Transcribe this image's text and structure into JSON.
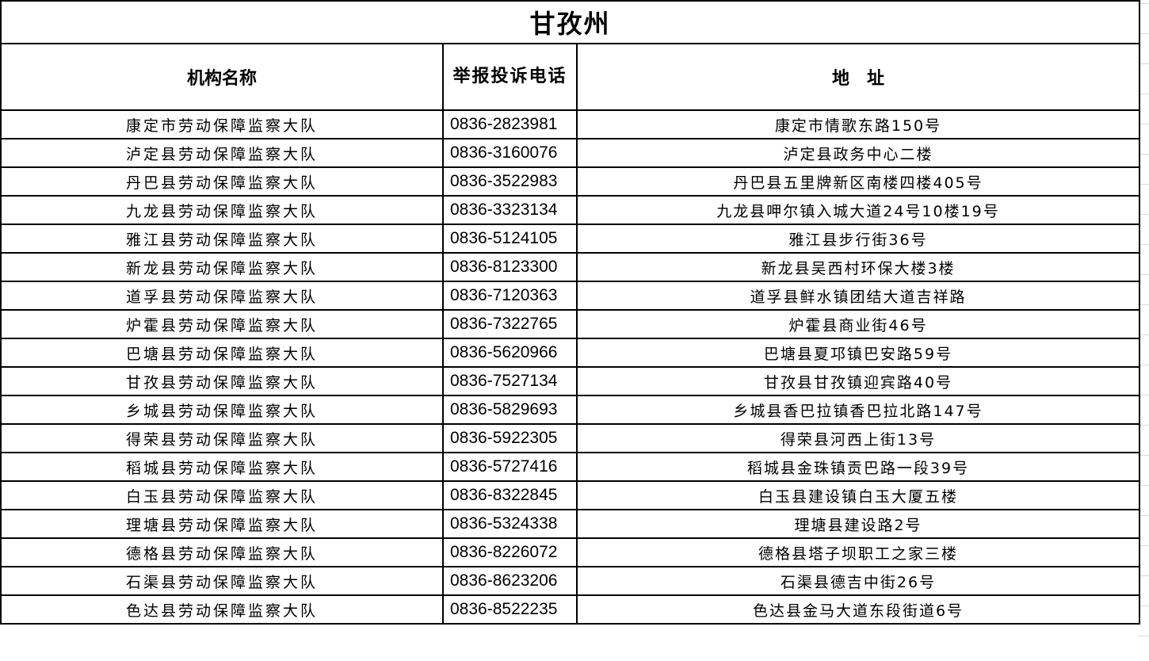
{
  "title": "甘孜州",
  "headers": [
    "机构名称",
    "举报投诉电话",
    "地　址"
  ],
  "rows": [
    {
      "name": "康定市劳动保障监察大队",
      "phone": "0836-2823981",
      "address": "康定市情歌东路150号"
    },
    {
      "name": "泸定县劳动保障监察大队",
      "phone": "0836-3160076",
      "address": "泸定县政务中心二楼"
    },
    {
      "name": "丹巴县劳动保障监察大队",
      "phone": "0836-3522983",
      "address": "丹巴县五里牌新区南楼四楼405号"
    },
    {
      "name": "九龙县劳动保障监察大队",
      "phone": "0836-3323134",
      "address": "九龙县呷尔镇入城大道24号10楼19号"
    },
    {
      "name": "雅江县劳动保障监察大队",
      "phone": "0836-5124105",
      "address": "雅江县步行街36号"
    },
    {
      "name": "新龙县劳动保障监察大队",
      "phone": "0836-8123300",
      "address": "新龙县吴西村环保大楼3楼"
    },
    {
      "name": "道孚县劳动保障监察大队",
      "phone": "0836-7120363",
      "address": "道孚县鲜水镇团结大道吉祥路"
    },
    {
      "name": "炉霍县劳动保障监察大队",
      "phone": "0836-7322765",
      "address": "炉霍县商业街46号"
    },
    {
      "name": "巴塘县劳动保障监察大队",
      "phone": "0836-5620966",
      "address": "巴塘县夏邛镇巴安路59号"
    },
    {
      "name": "甘孜县劳动保障监察大队",
      "phone": "0836-7527134",
      "address": "甘孜县甘孜镇迎宾路40号"
    },
    {
      "name": "乡城县劳动保障监察大队",
      "phone": "0836-5829693",
      "address": "乡城县香巴拉镇香巴拉北路147号"
    },
    {
      "name": "得荣县劳动保障监察大队",
      "phone": "0836-5922305",
      "address": "得荣县河西上街13号"
    },
    {
      "name": "稻城县劳动保障监察大队",
      "phone": "0836-5727416",
      "address": "稻城县金珠镇贡巴路一段39号"
    },
    {
      "name": "白玉县劳动保障监察大队",
      "phone": "0836-8322845",
      "address": "白玉县建设镇白玉大厦五楼"
    },
    {
      "name": "理塘县劳动保障监察大队",
      "phone": "0836-5324338",
      "address": "理塘县建设路2号"
    },
    {
      "name": "德格县劳动保障监察大队",
      "phone": "0836-8226072",
      "address": "德格县塔子坝职工之家三楼"
    },
    {
      "name": "石渠县劳动保障监察大队",
      "phone": "0836-8623206",
      "address": "石渠县德吉中街26号"
    },
    {
      "name": "色达县劳动保障监察大队",
      "phone": "0836-8522235",
      "address": "色达县金马大道东段街道6号"
    }
  ]
}
